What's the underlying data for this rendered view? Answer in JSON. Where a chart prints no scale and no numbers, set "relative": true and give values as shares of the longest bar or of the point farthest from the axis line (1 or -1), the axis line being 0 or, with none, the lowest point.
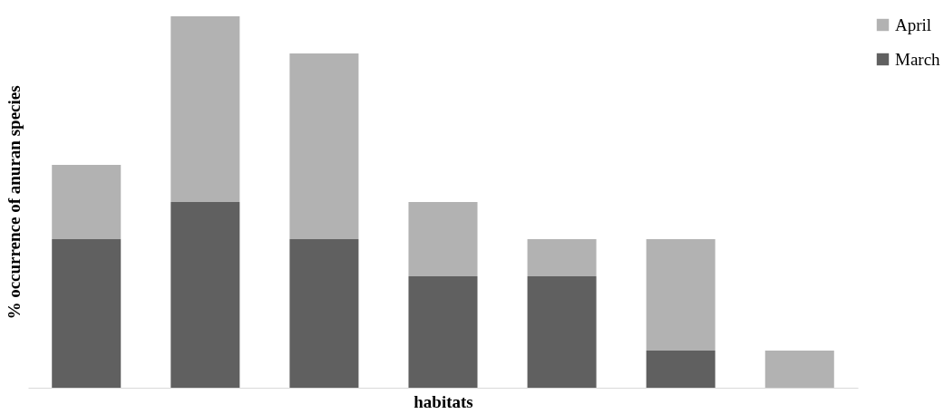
{
  "chart_data": {
    "type": "bar",
    "stacked": true,
    "relative": true,
    "xlabel": "habitats",
    "ylabel": "% occurrence of anuran species",
    "categories": [
      null,
      null,
      null,
      null,
      null,
      null,
      null
    ],
    "legend": "right",
    "grid": false,
    "series": [
      {
        "name": "March",
        "color": "#606060",
        "values": [
          0.4,
          0.5,
          0.4,
          0.3,
          0.3,
          0.1,
          0
        ]
      },
      {
        "name": "April",
        "color": "#b2b2b2",
        "values": [
          0.2,
          0.5,
          0.5,
          0.2,
          0.1,
          0.3,
          0.1
        ]
      }
    ]
  }
}
